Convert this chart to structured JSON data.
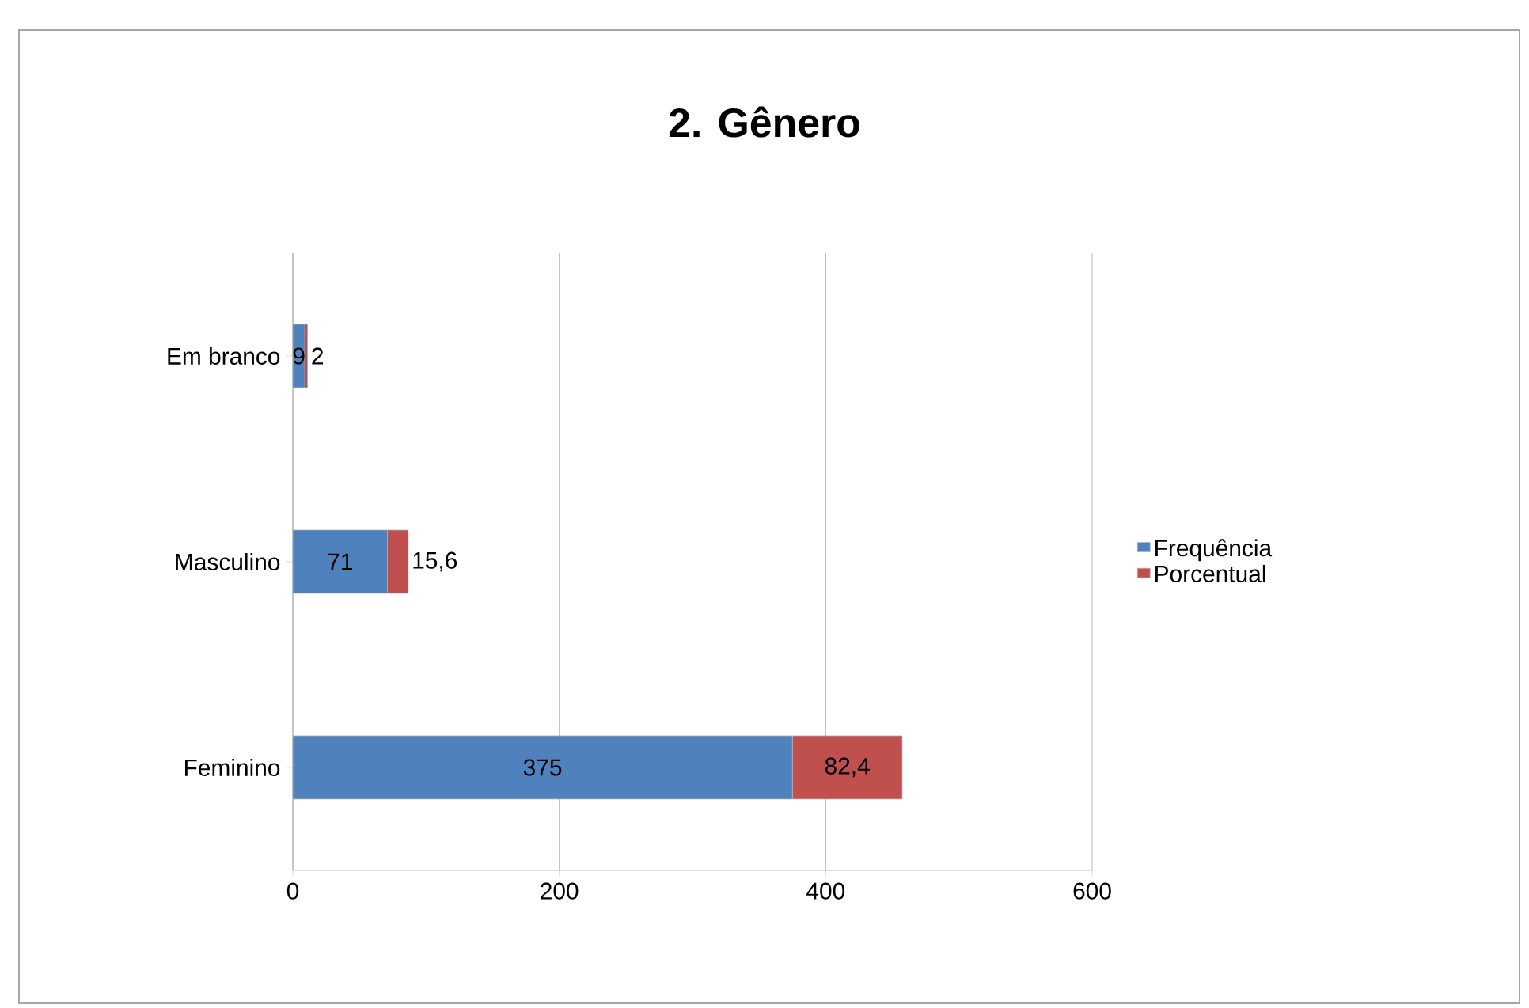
{
  "chart_data": {
    "type": "bar",
    "orientation": "horizontal",
    "stacked": true,
    "title": "2. Gênero",
    "categories": [
      "Em branco",
      "Masculino",
      "Feminino"
    ],
    "series": [
      {
        "name": "Frequência",
        "color": "#4f81bd",
        "values": [
          9,
          71,
          375
        ],
        "value_labels": [
          "9",
          "71",
          "375"
        ]
      },
      {
        "name": "Porcentual",
        "color": "#c0504d",
        "values": [
          2,
          15.6,
          82.4
        ],
        "value_labels": [
          "2",
          "15,6",
          "82,4"
        ]
      }
    ],
    "xlim": [
      0,
      600
    ],
    "xticks": [
      0,
      200,
      400,
      600
    ],
    "grid": "x",
    "legend": "right"
  }
}
